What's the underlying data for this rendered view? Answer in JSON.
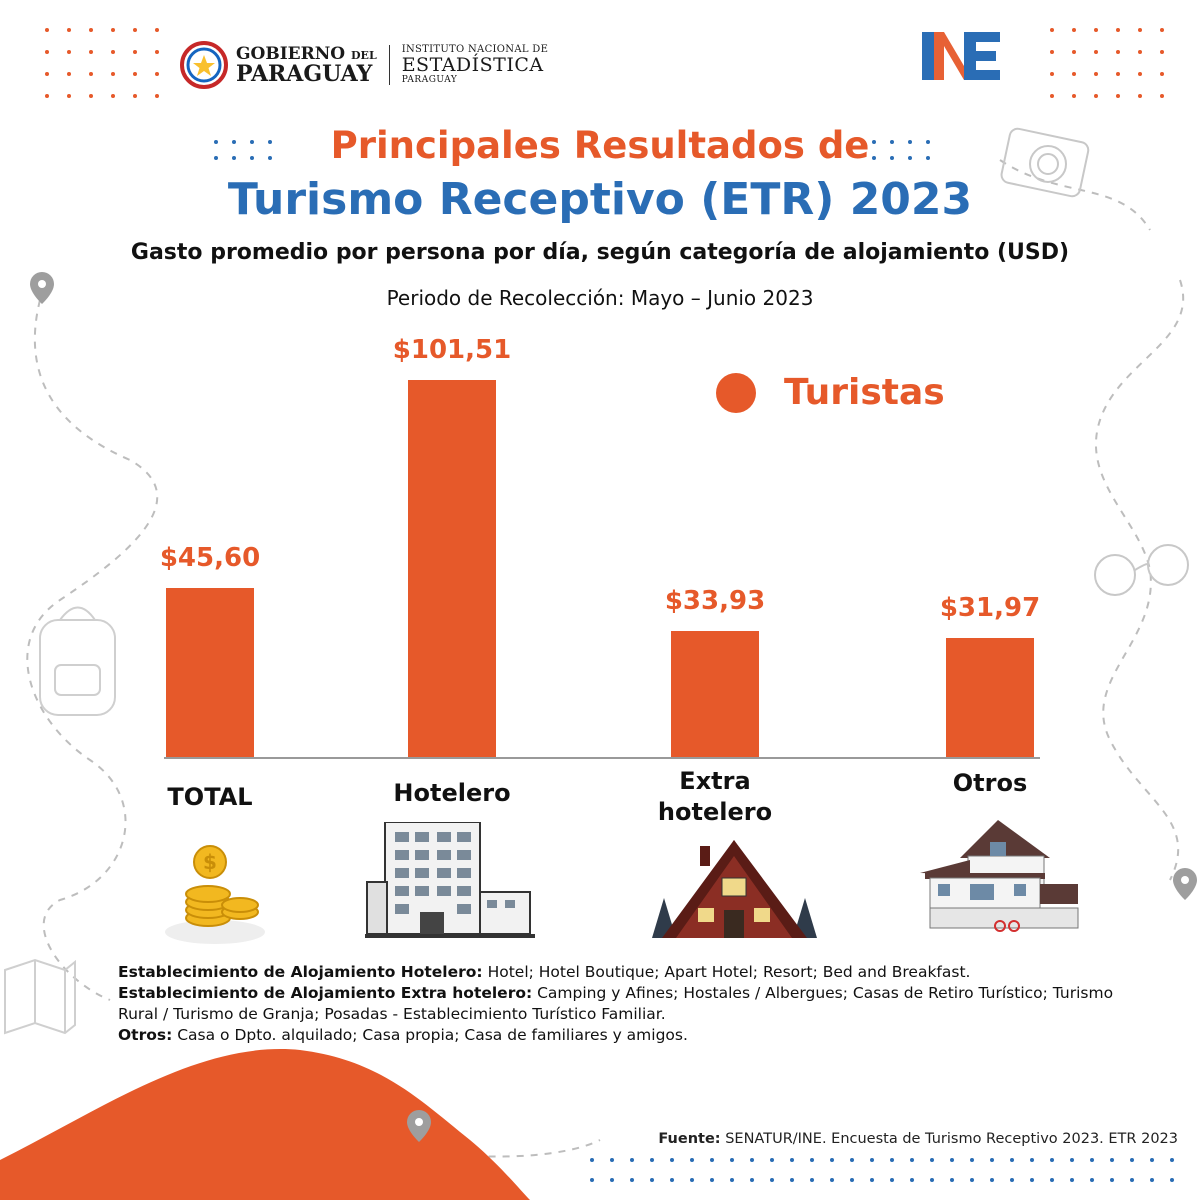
{
  "header": {
    "gov_line1": "GOBIERNO",
    "gov_line1_small": "DEL",
    "gov_line2": "PARAGUAY",
    "ine_line1": "INSTITUTO NACIONAL DE",
    "ine_line2": "ESTADÍSTICA",
    "ine_line3": "PARAGUAY",
    "ine_logo": "INE"
  },
  "title_line1": "Principales Resultados de",
  "title_line2": "Turismo Receptivo (ETR) 2023",
  "subtitle": "Gasto promedio por persona por día, según categoría de alojamiento (USD)",
  "period": "Periodo de Recolección: Mayo – Junio 2023",
  "colors": {
    "accent": "#e6592a",
    "blue": "#2a6db5"
  },
  "chart_data": {
    "type": "bar",
    "categories": [
      "TOTAL",
      "Hotelero",
      "Extra hotelero",
      "Otros"
    ],
    "series": [
      {
        "name": "Turistas",
        "values": [
          45.6,
          101.51,
          33.93,
          31.97
        ]
      }
    ],
    "value_labels": [
      "$45,60",
      "$101,51",
      "$33,93",
      "$31,97"
    ],
    "category_lines": [
      [
        "TOTAL"
      ],
      [
        "Hotelero"
      ],
      [
        "Extra",
        "hotelero"
      ],
      [
        "Otros"
      ]
    ],
    "ylim": [
      0,
      101.51
    ],
    "legend_position": "top-right",
    "grid": false
  },
  "icons": [
    "coins-icon",
    "hotel-building-icon",
    "cabin-icon",
    "house-icon"
  ],
  "notes": [
    {
      "bold": "Establecimiento de Alojamiento Hotelero:",
      "text": " Hotel; Hotel Boutique; Apart Hotel; Resort; Bed and Breakfast."
    },
    {
      "bold": "Establecimiento de Alojamiento Extra hotelero:",
      "text": " Camping y Afines; Hostales / Albergues; Casas de Retiro Turístico; Turismo Rural / Turismo de Granja; Posadas - Establecimiento Turístico Familiar."
    },
    {
      "bold": "Otros:",
      "text": " Casa o Dpto. alquilado; Casa propia; Casa de familiares y amigos."
    }
  ],
  "source": {
    "label": "Fuente:",
    "text": " SENATUR/INE. Encuesta de Turismo Receptivo 2023. ETR 2023"
  }
}
